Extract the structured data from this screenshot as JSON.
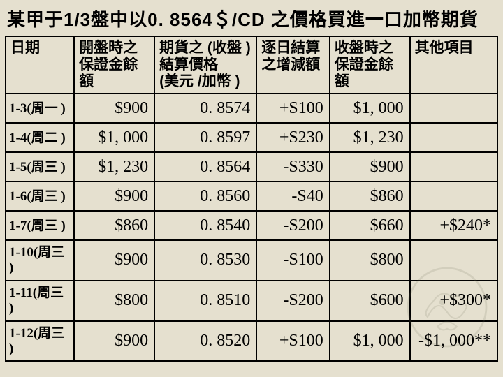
{
  "title": "某甲于1/3盤中以0. 8564＄/CD 之價格買進一口加幣期貨",
  "headers": {
    "date": "日期",
    "c1": "開盤時之保證金餘額",
    "c2": "期貨之 (收盤 )結算價格　(美元 /加幣 )",
    "c3": "逐日結算之增減額",
    "c4": "收盤時之保證金餘額",
    "c5": "其他項目"
  },
  "rows": [
    {
      "date": "1-3(周一 )",
      "c1": "$900",
      "c2": "0. 8574",
      "c3": "+S100",
      "c4": "$1, 000",
      "c5": ""
    },
    {
      "date": "1-4(周二 )",
      "c1": "$1, 000",
      "c2": "0. 8597",
      "c3": "+S230",
      "c4": "$1, 230",
      "c5": ""
    },
    {
      "date": "1-5(周三 )",
      "c1": "$1, 230",
      "c2": "0. 8564",
      "c3": "-S330",
      "c4": "$900",
      "c5": ""
    },
    {
      "date": "1-6(周三 )",
      "c1": "$900",
      "c2": "0. 8560",
      "c3": "-S40",
      "c4": "$860",
      "c5": ""
    },
    {
      "date": "1-7(周三 )",
      "c1": "$860",
      "c2": "0. 8540",
      "c3": "-S200",
      "c4": "$660",
      "c5": "+$240*"
    },
    {
      "date": "1-10(周三 )",
      "c1": "$900",
      "c2": "0. 8530",
      "c3": "-S100",
      "c4": "$800",
      "c5": ""
    },
    {
      "date": "1-11(周三 )",
      "c1": "$800",
      "c2": "0. 8510",
      "c3": "-S200",
      "c4": "$600",
      "c5": "+$300*"
    },
    {
      "date": "1-12(周三 )",
      "c1": "$900",
      "c2": "0. 8520",
      "c3": "+S100",
      "c4": "$1, 000",
      "c5": "-$1, 000**"
    }
  ],
  "colors": {
    "bg": "#e5e0cf",
    "border": "#000000",
    "text": "#000000"
  }
}
